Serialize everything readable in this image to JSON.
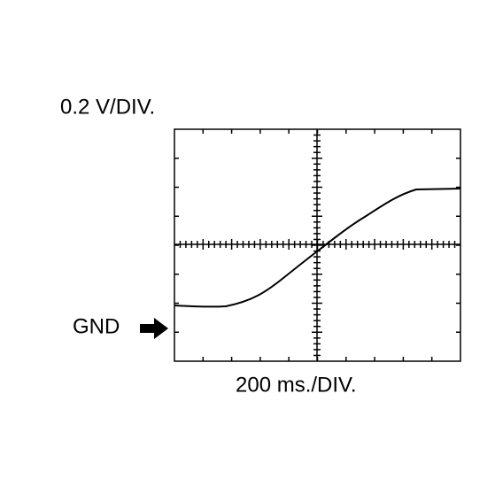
{
  "labels": {
    "voltage_scale": "0.2 V/DIV.",
    "time_scale": "200 ms./DIV.",
    "ground": "GND"
  }
}
